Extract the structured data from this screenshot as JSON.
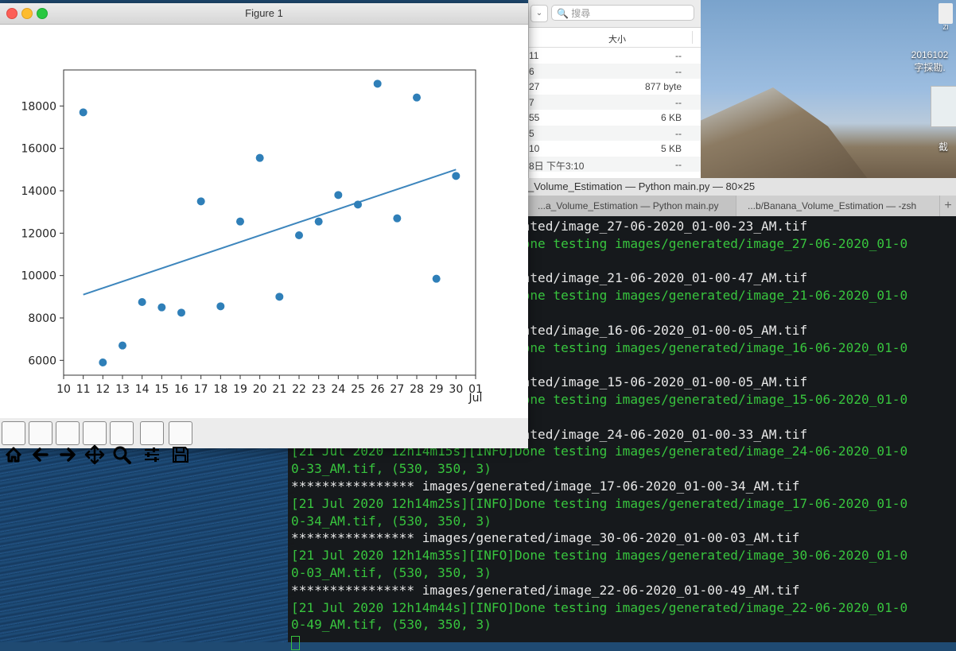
{
  "figure": {
    "title": "Figure 1",
    "toolbar_icons": [
      "home-icon",
      "back-arrow-icon",
      "forward-arrow-icon",
      "pan-icon",
      "zoom-icon",
      "configure-subplots-icon",
      "save-icon"
    ]
  },
  "chart_data": {
    "type": "scatter",
    "x_tick_labels": [
      "10",
      "11",
      "12",
      "13",
      "14",
      "15",
      "16",
      "17",
      "18",
      "19",
      "20",
      "21",
      "22",
      "23",
      "24",
      "25",
      "26",
      "27",
      "28",
      "29",
      "30",
      "01",
      "Jul"
    ],
    "y_ticks": [
      6000,
      8000,
      10000,
      12000,
      14000,
      16000,
      18000
    ],
    "y_tick_labels": [
      "6000",
      "8000",
      "10000",
      "12000",
      "14000",
      "16000",
      "18000"
    ],
    "xlim": [
      10,
      31
    ],
    "ylim": [
      5300,
      19700
    ],
    "points": [
      {
        "x": 11,
        "y": 17700
      },
      {
        "x": 12,
        "y": 5900
      },
      {
        "x": 13,
        "y": 6700
      },
      {
        "x": 14,
        "y": 8750
      },
      {
        "x": 15,
        "y": 8500
      },
      {
        "x": 16,
        "y": 8250
      },
      {
        "x": 17,
        "y": 13500
      },
      {
        "x": 18,
        "y": 8550
      },
      {
        "x": 19,
        "y": 12550
      },
      {
        "x": 20,
        "y": 15550
      },
      {
        "x": 21,
        "y": 9000
      },
      {
        "x": 22,
        "y": 11900
      },
      {
        "x": 23,
        "y": 12550
      },
      {
        "x": 24,
        "y": 13800
      },
      {
        "x": 25,
        "y": 13350
      },
      {
        "x": 26,
        "y": 19050
      },
      {
        "x": 27,
        "y": 12700
      },
      {
        "x": 28,
        "y": 18400
      },
      {
        "x": 29,
        "y": 9850
      },
      {
        "x": 30,
        "y": 14700
      }
    ],
    "trend_line": {
      "x": [
        11,
        30
      ],
      "y": [
        9100,
        15000
      ]
    },
    "point_color": "#2f7fb8",
    "line_color": "#3d86bd",
    "grid": false
  },
  "finder": {
    "search_placeholder": "搜尋",
    "size_header": "大小",
    "rows": [
      {
        "date": "11",
        "size": "--"
      },
      {
        "date": "6",
        "size": "--"
      },
      {
        "date": "27",
        "size": "877 byte"
      },
      {
        "date": "7",
        "size": "--"
      },
      {
        "date": "55",
        "size": "6 KB"
      },
      {
        "date": "5",
        "size": "--"
      },
      {
        "date": "10",
        "size": "5 KB"
      },
      {
        "date": "8日 下午3:10",
        "size": "--"
      }
    ]
  },
  "desktop": {
    "icon1_label": "ZI",
    "icon2_label1": "2016102",
    "icon2_label2": "字採勘.",
    "icon3_label": "截"
  },
  "terminal": {
    "title": "_Volume_Estimation — Python main.py — 80×25",
    "tabs": [
      "...a_Volume_Estimation — Python main.py",
      "...b/Banana_Volume_Estimation — -zsh"
    ],
    "lines": [
      {
        "text": "                             rated/image_27-06-2020_01-00-23_AM.tif",
        "color": "w"
      },
      {
        "text": "                             Done testing images/generated/image_27-06-2020_01-0",
        "color": "g"
      },
      {
        "text": "",
        "color": "g"
      },
      {
        "text": "                             rated/image_21-06-2020_01-00-47_AM.tif",
        "color": "w"
      },
      {
        "text": "                             Done testing images/generated/image_21-06-2020_01-0",
        "color": "g"
      },
      {
        "text": "",
        "color": "g"
      },
      {
        "text": "                             rated/image_16-06-2020_01-00-05_AM.tif",
        "color": "w"
      },
      {
        "text": "                             Done testing images/generated/image_16-06-2020_01-0",
        "color": "g"
      },
      {
        "text": "",
        "color": "g"
      },
      {
        "text": "                             rated/image_15-06-2020_01-00-05_AM.tif",
        "color": "w"
      },
      {
        "text": "                             Done testing images/generated/image_15-06-2020_01-0",
        "color": "g"
      },
      {
        "text": "",
        "color": "g"
      },
      {
        "text": "                             rated/image_24-06-2020_01-00-33_AM.tif",
        "color": "w"
      },
      {
        "text": "[21 Jul 2020 12h14m15s][INFO]Done testing images/generated/image_24-06-2020_01-0",
        "color": "g"
      },
      {
        "text": "0-33_AM.tif, (530, 350, 3)",
        "color": "g"
      },
      {
        "text": "**************** images/generated/image_17-06-2020_01-00-34_AM.tif",
        "color": "w"
      },
      {
        "text": "[21 Jul 2020 12h14m25s][INFO]Done testing images/generated/image_17-06-2020_01-0",
        "color": "g"
      },
      {
        "text": "0-34_AM.tif, (530, 350, 3)",
        "color": "g"
      },
      {
        "text": "**************** images/generated/image_30-06-2020_01-00-03_AM.tif",
        "color": "w"
      },
      {
        "text": "[21 Jul 2020 12h14m35s][INFO]Done testing images/generated/image_30-06-2020_01-0",
        "color": "g"
      },
      {
        "text": "0-03_AM.tif, (530, 350, 3)",
        "color": "g"
      },
      {
        "text": "**************** images/generated/image_22-06-2020_01-00-49_AM.tif",
        "color": "w"
      },
      {
        "text": "[21 Jul 2020 12h14m44s][INFO]Done testing images/generated/image_22-06-2020_01-0",
        "color": "g"
      },
      {
        "text": "0-49_AM.tif, (530, 350, 3)",
        "color": "g"
      }
    ]
  }
}
